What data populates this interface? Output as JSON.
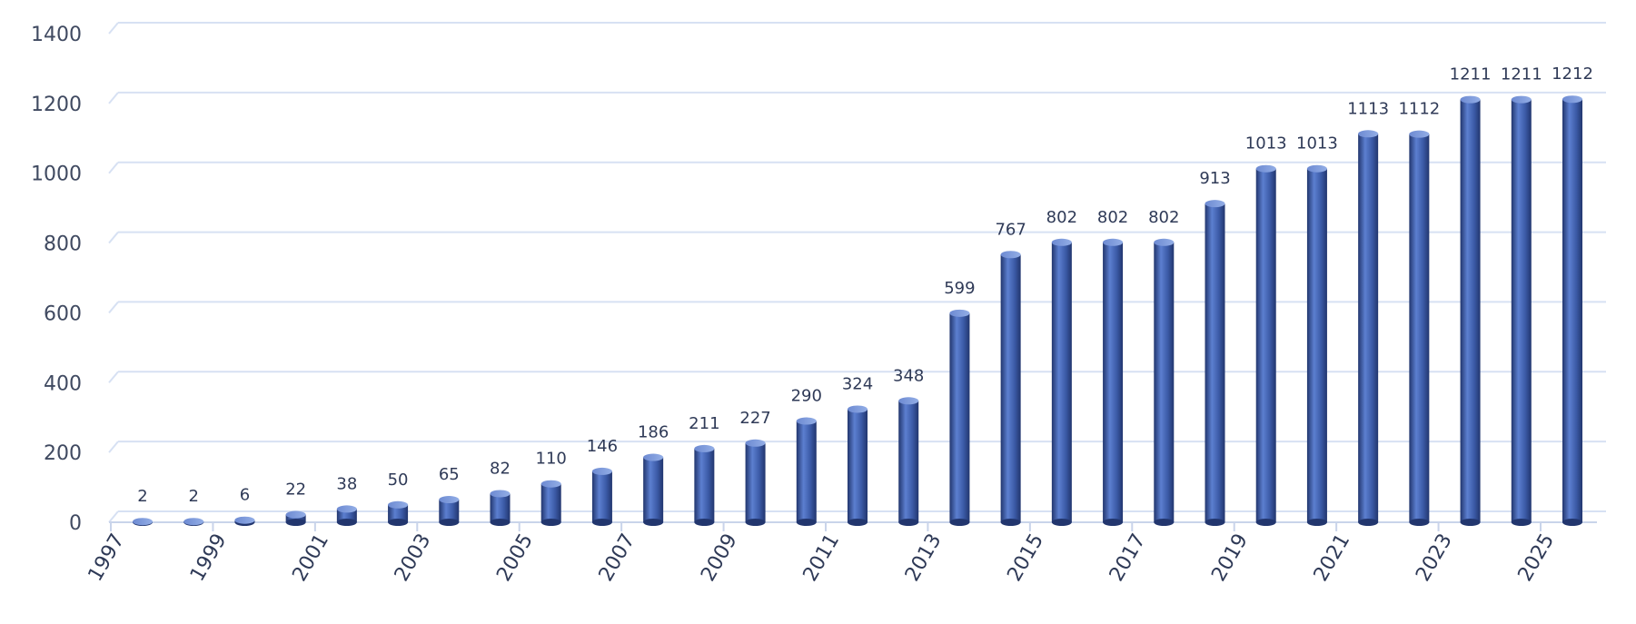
{
  "chart_data": {
    "type": "bar",
    "title": "",
    "xlabel": "",
    "ylabel": "",
    "categories": [
      "1997",
      "1998",
      "1999",
      "2000",
      "2001",
      "2002",
      "2003",
      "2004",
      "2005",
      "2006",
      "2007",
      "2008",
      "2009",
      "2010",
      "2011",
      "2012",
      "2013",
      "2014",
      "2015",
      "2016",
      "2017",
      "2018",
      "2019",
      "2020",
      "2021",
      "2022",
      "2023",
      "2024",
      "2025"
    ],
    "x_tick_labels": [
      "1997",
      "",
      "1999",
      "",
      "2001",
      "",
      "2003",
      "",
      "2005",
      "",
      "2007",
      "",
      "2009",
      "",
      "2011",
      "",
      "2013",
      "",
      "2015",
      "",
      "2017",
      "",
      "2019",
      "",
      "2021",
      "",
      "2023",
      "",
      "2025"
    ],
    "values": [
      2,
      2,
      6,
      22,
      38,
      50,
      65,
      82,
      110,
      146,
      186,
      211,
      227,
      290,
      324,
      348,
      599,
      767,
      802,
      802,
      802,
      913,
      1013,
      1013,
      1113,
      1112,
      1211,
      1211,
      1212
    ],
    "data_labels": [
      "2",
      "2",
      "6",
      "22",
      "38",
      "50",
      "65",
      "82",
      "110",
      "146",
      "186",
      "211",
      "227",
      "290",
      "324",
      "348",
      "599",
      "767",
      "802",
      "802",
      "802",
      "913",
      "1013",
      "1013",
      "1113",
      "1112",
      "1211",
      "1211",
      "1212"
    ],
    "ylim": [
      0,
      1400
    ],
    "y_ticks": [
      0,
      200,
      400,
      600,
      800,
      1000,
      1200,
      1400
    ],
    "grid": true,
    "legend": "none",
    "bar_style": "3d-cylinder",
    "colors": {
      "bar_light": "#5c7fd0",
      "bar_mid": "#3b5aa6",
      "bar_dark": "#22366e",
      "bar_top": "#7b98dc",
      "grid": "#d7e1f3",
      "text": "#2f3a57"
    }
  }
}
